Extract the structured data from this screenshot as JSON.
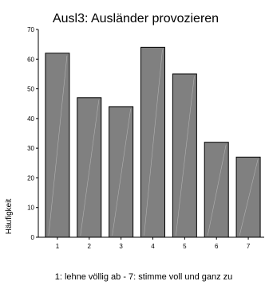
{
  "chart_data": {
    "type": "bar",
    "title": "Ausl3: Ausländer provozieren",
    "categories": [
      "1",
      "2",
      "3",
      "4",
      "5",
      "6",
      "7"
    ],
    "values": [
      62,
      47,
      44,
      64,
      55,
      32,
      27
    ],
    "ylabel": "Häufigkeit",
    "xlabel": "1: lehne völlig ab - 7: stimme voll und ganz zu",
    "ylim": [
      0,
      70
    ],
    "yticks": [
      0,
      10,
      20,
      30,
      40,
      50,
      60,
      70
    ],
    "grid": false,
    "legend": "none",
    "bar_color": "#808080",
    "bar_edge_color": "#000000"
  }
}
